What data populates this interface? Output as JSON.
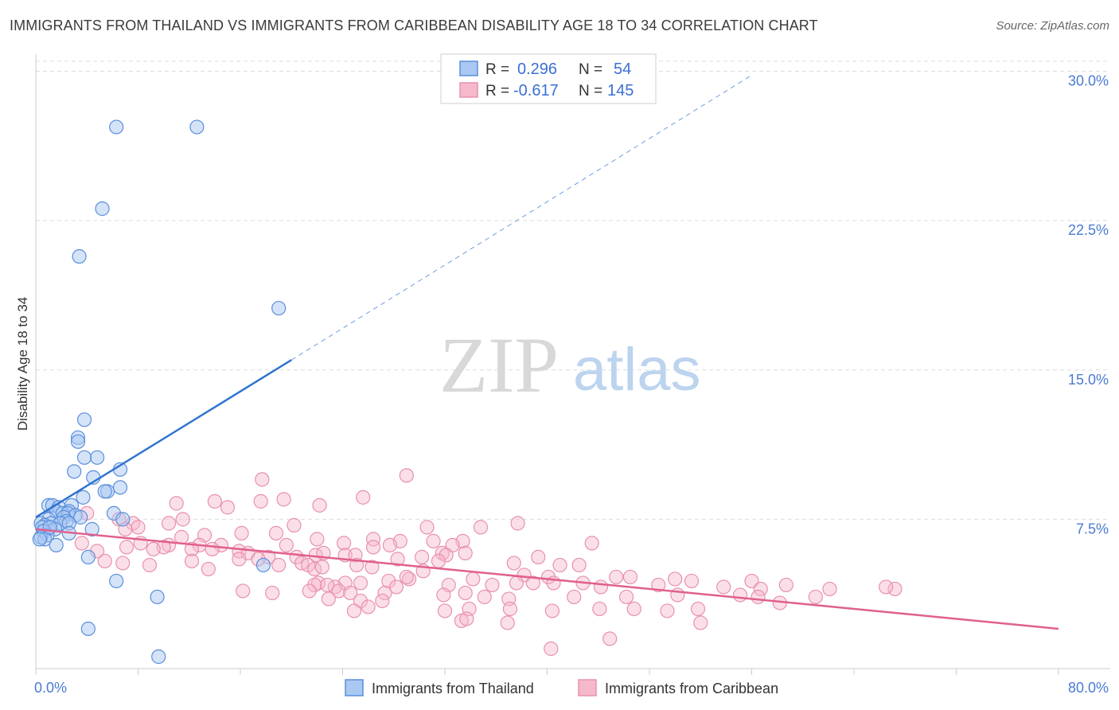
{
  "header": {
    "title": "IMMIGRANTS FROM THAILAND VS IMMIGRANTS FROM CARIBBEAN DISABILITY AGE 18 TO 34 CORRELATION CHART",
    "source": "Source: ZipAtlas.com"
  },
  "watermark": {
    "zip": "ZIP",
    "atlas": "atlas"
  },
  "colors": {
    "thailand_fill": "#a9c8f2",
    "thailand_stroke": "#5a8fdc",
    "thailand_line": "#2f74d0",
    "caribbean_fill": "#f6b9cc",
    "caribbean_stroke": "#e891ad",
    "caribbean_line": "#e0608e",
    "grid": "#dddddd",
    "axis_label": "#4a7bd0"
  },
  "stats": [
    {
      "r_label": "R =",
      "r_value": "0.296",
      "n_label": "N =",
      "n_value": "54"
    },
    {
      "r_label": "R =",
      "r_value": "-0.617",
      "n_label": "N =",
      "n_value": "145"
    }
  ],
  "chart_data": {
    "type": "scatter",
    "title": "IMMIGRANTS FROM THAILAND VS IMMIGRANTS FROM CARIBBEAN DISABILITY AGE 18 TO 34 CORRELATION CHART",
    "xlabel": "",
    "ylabel": "Disability Age 18 to 34",
    "xlim": [
      0,
      80
    ],
    "ylim": [
      0,
      30.5
    ],
    "x_tick_labels": [
      "0.0%",
      "80.0%"
    ],
    "y_ticks": [
      7.5,
      15.0,
      22.5,
      30.0
    ],
    "y_tick_labels": [
      "7.5%",
      "15.0%",
      "22.5%",
      "30.0%"
    ],
    "grid": true,
    "legend_position": "bottom",
    "series": [
      {
        "name": "Immigrants from Thailand",
        "r": 0.296,
        "n": 54,
        "trend": {
          "x0": 0,
          "y0": 7.6,
          "x1": 20,
          "y1": 15.5,
          "dashed_to_x": 56,
          "dashed_to_y": 29.8
        },
        "points": [
          [
            6.3,
            27.2
          ],
          [
            12.6,
            27.2
          ],
          [
            5.2,
            23.1
          ],
          [
            3.4,
            20.7
          ],
          [
            19.0,
            18.1
          ],
          [
            3.8,
            12.5
          ],
          [
            3.3,
            11.6
          ],
          [
            3.3,
            11.4
          ],
          [
            4.8,
            10.6
          ],
          [
            3.8,
            10.6
          ],
          [
            6.6,
            10.0
          ],
          [
            3.0,
            9.9
          ],
          [
            4.5,
            9.6
          ],
          [
            6.6,
            9.1
          ],
          [
            5.6,
            8.9
          ],
          [
            5.4,
            8.9
          ],
          [
            3.7,
            8.6
          ],
          [
            2.8,
            8.2
          ],
          [
            1.0,
            8.2
          ],
          [
            1.3,
            8.2
          ],
          [
            1.8,
            8.1
          ],
          [
            2.6,
            7.9
          ],
          [
            1.6,
            7.9
          ],
          [
            2.1,
            7.8
          ],
          [
            2.5,
            7.8
          ],
          [
            6.1,
            7.8
          ],
          [
            3.1,
            7.7
          ],
          [
            2.2,
            7.6
          ],
          [
            3.5,
            7.6
          ],
          [
            6.8,
            7.5
          ],
          [
            1.0,
            7.5
          ],
          [
            2.4,
            7.4
          ],
          [
            1.2,
            7.3
          ],
          [
            0.4,
            7.3
          ],
          [
            1.9,
            7.3
          ],
          [
            2.6,
            7.3
          ],
          [
            0.7,
            7.2
          ],
          [
            0.5,
            7.1
          ],
          [
            1.5,
            7.0
          ],
          [
            4.4,
            7.0
          ],
          [
            0.6,
            6.9
          ],
          [
            2.6,
            6.8
          ],
          [
            0.9,
            6.7
          ],
          [
            0.4,
            6.6
          ],
          [
            0.7,
            6.5
          ],
          [
            0.3,
            6.5
          ],
          [
            1.6,
            6.2
          ],
          [
            4.1,
            5.6
          ],
          [
            17.8,
            5.2
          ],
          [
            6.3,
            4.4
          ],
          [
            9.5,
            3.6
          ],
          [
            4.1,
            2.0
          ],
          [
            9.6,
            0.6
          ],
          [
            1.1,
            7.1
          ]
        ]
      },
      {
        "name": "Immigrants from Caribbean",
        "r": -0.617,
        "n": 145,
        "trend": {
          "x0": 0,
          "y0": 7.0,
          "x1": 80,
          "y1": 2.0
        },
        "points": [
          [
            17.7,
            9.5
          ],
          [
            29.0,
            9.7
          ],
          [
            25.6,
            8.6
          ],
          [
            11.0,
            8.3
          ],
          [
            14.0,
            8.4
          ],
          [
            17.6,
            8.4
          ],
          [
            19.4,
            8.5
          ],
          [
            22.2,
            8.2
          ],
          [
            15.0,
            8.1
          ],
          [
            4.0,
            7.8
          ],
          [
            6.5,
            7.5
          ],
          [
            11.5,
            7.5
          ],
          [
            7.6,
            7.3
          ],
          [
            10.4,
            7.3
          ],
          [
            8.0,
            7.1
          ],
          [
            20.2,
            7.2
          ],
          [
            30.6,
            7.1
          ],
          [
            34.8,
            7.1
          ],
          [
            37.7,
            7.3
          ],
          [
            16.1,
            6.8
          ],
          [
            18.8,
            6.8
          ],
          [
            13.2,
            6.7
          ],
          [
            11.4,
            6.6
          ],
          [
            22.0,
            6.5
          ],
          [
            26.4,
            6.5
          ],
          [
            28.5,
            6.4
          ],
          [
            33.4,
            6.4
          ],
          [
            43.5,
            6.3
          ],
          [
            8.2,
            6.3
          ],
          [
            10.4,
            6.2
          ],
          [
            7.1,
            6.1
          ],
          [
            10.0,
            6.1
          ],
          [
            14.5,
            6.2
          ],
          [
            12.8,
            6.2
          ],
          [
            19.6,
            6.2
          ],
          [
            24.1,
            6.3
          ],
          [
            26.4,
            6.1
          ],
          [
            27.7,
            6.2
          ],
          [
            31.1,
            6.4
          ],
          [
            32.6,
            6.2
          ],
          [
            3.6,
            6.3
          ],
          [
            4.8,
            5.9
          ],
          [
            9.2,
            6.0
          ],
          [
            12.2,
            6.0
          ],
          [
            13.8,
            6.0
          ],
          [
            15.9,
            5.9
          ],
          [
            16.6,
            5.8
          ],
          [
            18.2,
            5.6
          ],
          [
            20.4,
            5.6
          ],
          [
            21.9,
            5.7
          ],
          [
            22.5,
            5.8
          ],
          [
            24.2,
            5.7
          ],
          [
            25.0,
            5.7
          ],
          [
            30.2,
            5.6
          ],
          [
            31.8,
            5.8
          ],
          [
            32.1,
            5.7
          ],
          [
            33.6,
            5.8
          ],
          [
            5.4,
            5.4
          ],
          [
            6.8,
            5.3
          ],
          [
            8.9,
            5.2
          ],
          [
            12.2,
            5.4
          ],
          [
            13.5,
            5.0
          ],
          [
            15.9,
            5.5
          ],
          [
            17.4,
            5.5
          ],
          [
            19.0,
            5.2
          ],
          [
            20.8,
            5.3
          ],
          [
            21.3,
            5.2
          ],
          [
            21.8,
            5.0
          ],
          [
            22.4,
            5.1
          ],
          [
            25.1,
            5.2
          ],
          [
            26.3,
            5.1
          ],
          [
            28.3,
            5.5
          ],
          [
            30.3,
            4.9
          ],
          [
            31.5,
            5.4
          ],
          [
            37.4,
            5.3
          ],
          [
            39.3,
            5.6
          ],
          [
            41.0,
            5.2
          ],
          [
            42.5,
            5.2
          ],
          [
            38.2,
            4.7
          ],
          [
            40.1,
            4.6
          ],
          [
            45.4,
            4.6
          ],
          [
            46.5,
            4.6
          ],
          [
            50.0,
            4.5
          ],
          [
            51.3,
            4.4
          ],
          [
            34.2,
            4.5
          ],
          [
            27.6,
            4.4
          ],
          [
            29.2,
            4.5
          ],
          [
            29.0,
            4.6
          ],
          [
            24.2,
            4.3
          ],
          [
            22.1,
            4.3
          ],
          [
            23.4,
            4.1
          ],
          [
            21.8,
            4.2
          ],
          [
            22.8,
            4.2
          ],
          [
            25.4,
            4.3
          ],
          [
            28.2,
            4.1
          ],
          [
            32.3,
            4.2
          ],
          [
            35.7,
            4.2
          ],
          [
            37.6,
            4.3
          ],
          [
            38.9,
            4.3
          ],
          [
            40.5,
            4.3
          ],
          [
            42.8,
            4.3
          ],
          [
            44.2,
            4.1
          ],
          [
            48.7,
            4.2
          ],
          [
            53.8,
            4.1
          ],
          [
            56.0,
            4.4
          ],
          [
            58.7,
            4.2
          ],
          [
            62.1,
            4.0
          ],
          [
            67.2,
            4.0
          ],
          [
            66.5,
            4.1
          ],
          [
            56.7,
            4.0
          ],
          [
            16.2,
            3.9
          ],
          [
            18.5,
            3.8
          ],
          [
            21.4,
            3.9
          ],
          [
            23.7,
            3.9
          ],
          [
            24.6,
            3.8
          ],
          [
            27.3,
            3.8
          ],
          [
            31.9,
            3.7
          ],
          [
            33.6,
            3.8
          ],
          [
            35.1,
            3.6
          ],
          [
            37.0,
            3.5
          ],
          [
            42.1,
            3.6
          ],
          [
            46.2,
            3.6
          ],
          [
            50.2,
            3.7
          ],
          [
            55.1,
            3.7
          ],
          [
            56.5,
            3.6
          ],
          [
            61.0,
            3.6
          ],
          [
            22.9,
            3.5
          ],
          [
            25.4,
            3.4
          ],
          [
            27.1,
            3.4
          ],
          [
            26.0,
            3.1
          ],
          [
            33.9,
            3.0
          ],
          [
            24.9,
            2.9
          ],
          [
            32.0,
            2.9
          ],
          [
            37.1,
            3.0
          ],
          [
            40.4,
            2.9
          ],
          [
            44.1,
            3.0
          ],
          [
            46.8,
            3.0
          ],
          [
            49.4,
            2.9
          ],
          [
            51.8,
            3.0
          ],
          [
            58.2,
            3.3
          ],
          [
            33.3,
            2.4
          ],
          [
            33.7,
            2.5
          ],
          [
            36.9,
            2.3
          ],
          [
            52.0,
            2.3
          ],
          [
            44.9,
            1.5
          ],
          [
            40.3,
            1.0
          ],
          [
            7.0,
            7.0
          ]
        ]
      }
    ]
  },
  "legend": {
    "items": [
      {
        "label": "Immigrants from Thailand"
      },
      {
        "label": "Immigrants from Caribbean"
      }
    ]
  }
}
